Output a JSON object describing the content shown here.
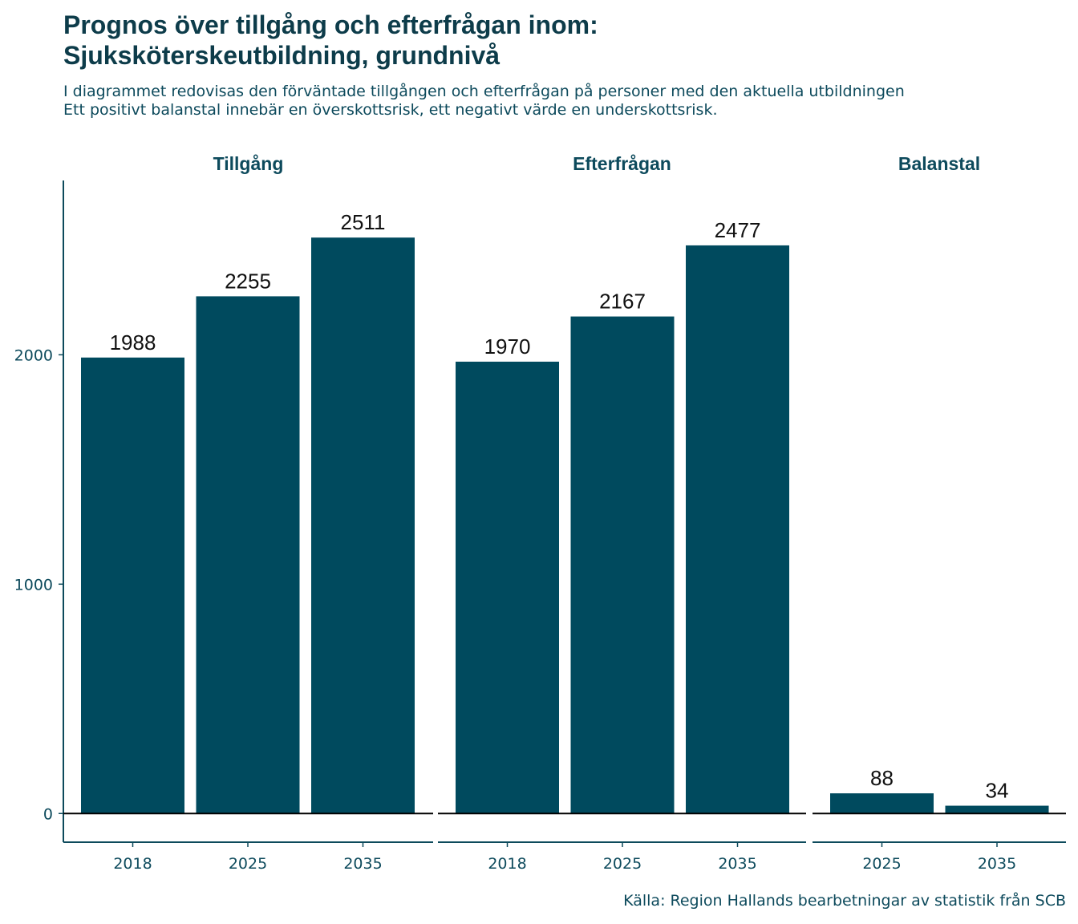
{
  "title_lines": [
    "Prognos över tillgång och efterfrågan inom:",
    "Sjuksköterskeutbildning, grundnivå"
  ],
  "subtitle_lines": [
    "I diagrammet redovisas den förväntade tillgången och efterfrågan på personer med den aktuella utbildningen",
    "Ett positivt balanstal innebär en överskottsrisk, ett negativt värde en underskottsrisk."
  ],
  "caption": "Källa: Region Hallands bearbetningar av statistik från SCB",
  "colors": {
    "bar": "#004a5e",
    "text": "#0d4a5c",
    "title": "#0d3c4a"
  },
  "chart_data": {
    "type": "bar",
    "facets": [
      {
        "title": "Tillgång",
        "categories": [
          "2018",
          "2025",
          "2035"
        ],
        "values": [
          1988,
          2255,
          2511
        ]
      },
      {
        "title": "Efterfrågan",
        "categories": [
          "2018",
          "2025",
          "2035"
        ],
        "values": [
          1970,
          2167,
          2477
        ]
      },
      {
        "title": "Balanstal",
        "categories": [
          "2025",
          "2035"
        ],
        "values": [
          88,
          34
        ]
      }
    ],
    "y_ticks": [
      0,
      1000,
      2000
    ],
    "ylim": [
      -125,
      2760
    ],
    "xlabel": "",
    "ylabel": "",
    "grid": false,
    "data_labels": true,
    "zero_line": true
  }
}
